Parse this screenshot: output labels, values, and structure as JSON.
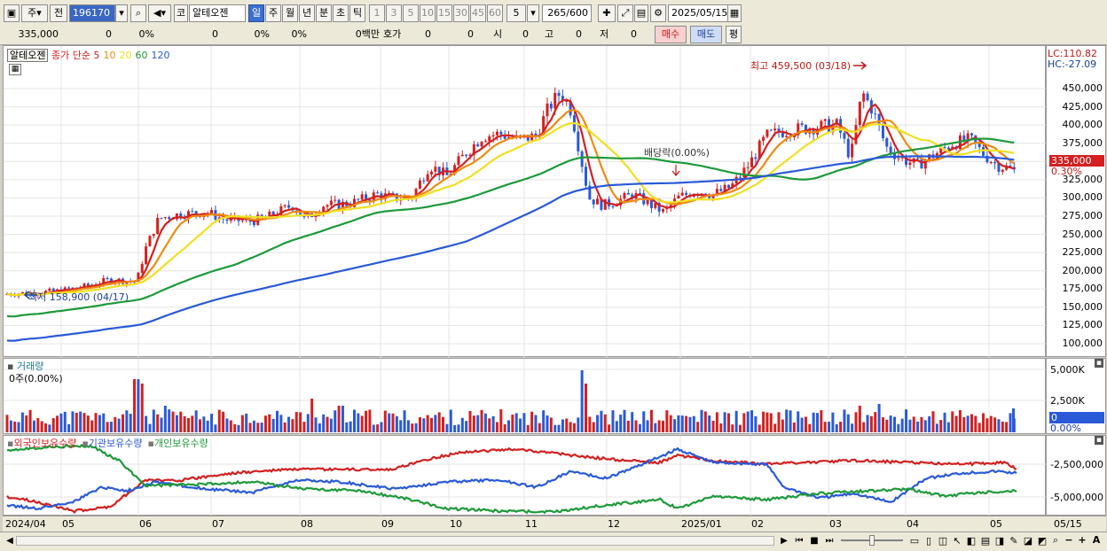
{
  "toolbar": {
    "market": "주",
    "prev_label": "전",
    "code": "196170",
    "category": "코",
    "stock_name": "알테오젠",
    "periods": [
      "일",
      "주",
      "월",
      "년",
      "분",
      "초",
      "틱"
    ],
    "active_period": "일",
    "intervals": [
      "1",
      "3",
      "5",
      "10",
      "15",
      "30",
      "45",
      "60"
    ],
    "interval_select": "5",
    "count": "265",
    "count_max": "/600",
    "date": "2025/05/15"
  },
  "quote": {
    "price": "335,000",
    "change": "0",
    "change_pct": "0%",
    "volume": "0",
    "vol_pct": "0%",
    "pct2": "0%",
    "amount": "0백만",
    "hoga_label": "호가",
    "hoga1": "0",
    "hoga2": "0",
    "si_label": "시",
    "si": "0",
    "go_label": "고",
    "go": "0",
    "jeo_label": "저",
    "jeo": "0",
    "buy_label": "매수",
    "sell_label": "매도",
    "avg_label": "평"
  },
  "price_panel": {
    "stock_label": "알테오젠",
    "ma_prefix": "종가 단순",
    "ma_periods": [
      "5",
      "10",
      "20",
      "60",
      "120"
    ],
    "ma_colors": [
      "#d42020",
      "#f08a10",
      "#f0e020",
      "#1e9a3a",
      "#2a5ad8"
    ],
    "lc": "LC:110.82",
    "hc": "HC:-27.09",
    "price_ticks": [
      "450,000",
      "425,000",
      "400,000",
      "375,000",
      "350,000",
      "325,000",
      "300,000",
      "275,000",
      "250,000",
      "225,000",
      "200,000",
      "175,000",
      "150,000",
      "125,000",
      "100,000"
    ],
    "current_price": "335,000",
    "current_pct": "0.30%",
    "high_annotation": "최고 459,500 (03/18)",
    "low_annotation": "최저 158,900 (04/17)",
    "dividend_annotation": "배당락(0.00%)"
  },
  "volume_panel": {
    "title": "거래량",
    "value": "0주(0.00%)",
    "ticks": [
      "5,000K",
      "2,500K"
    ],
    "current": "0",
    "current_pct": "0.00%"
  },
  "holding_panel": {
    "legend": [
      "외국인보유수량",
      "기관보유수량",
      "개인보유수량"
    ],
    "legend_colors": [
      "#d42020",
      "#2a5ad8",
      "#1e9a3a"
    ],
    "ticks": [
      "-2,500,000",
      "-5,000,000"
    ]
  },
  "x_axis": {
    "labels": [
      "2024/04",
      "05",
      "06",
      "07",
      "08",
      "09",
      "10",
      "11",
      "12",
      "2025/01",
      "02",
      "03",
      "04",
      "05",
      "05/15"
    ]
  },
  "colors": {
    "up": "#d42020",
    "down": "#2a5ad8",
    "accent": "#3a66c4"
  }
}
